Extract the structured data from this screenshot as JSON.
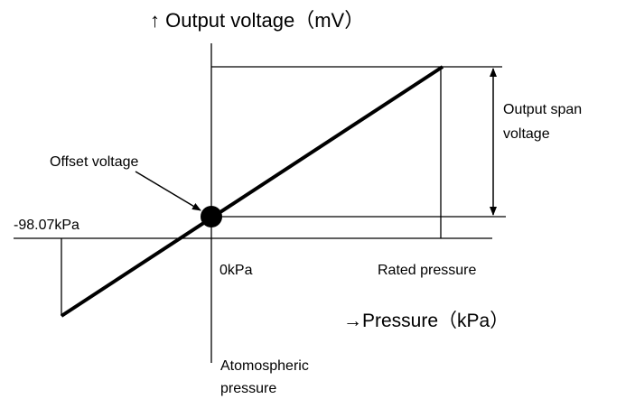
{
  "title": "↑ Output voltage（mV）",
  "x_label": "→Pressure（kPa）",
  "offset_label": "Offset voltage",
  "negative_label": "-98.07kPa",
  "zero_label": "0kPa",
  "rated_label": "Rated pressure",
  "span_label": [
    "Output span",
    "voltage"
  ],
  "atmos_label": [
    "Atomospheric",
    "pressure"
  ]
}
